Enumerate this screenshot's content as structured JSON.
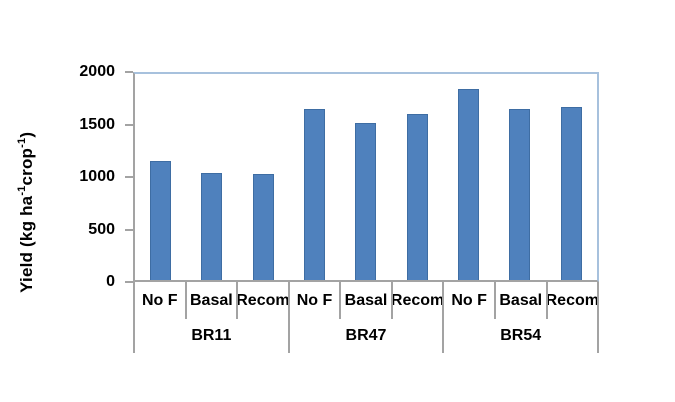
{
  "chart_data": {
    "type": "bar",
    "title": "",
    "ylabel": "Yield (kg ha⁻¹crop⁻¹)",
    "ylabel_parts": [
      "Yield (kg ha",
      "-1",
      "crop",
      "-1",
      ")"
    ],
    "xlabel": "",
    "ylim": [
      0,
      2000
    ],
    "yticks": [
      0,
      500,
      1000,
      1500,
      2000
    ],
    "grid": false,
    "legend": null,
    "bar_color": "#4F81BD",
    "bar_border_color": "#3E6DA3",
    "plot_border_color": "#A7C1DD",
    "axis_color": "#A3A3A3",
    "groups": [
      {
        "label": "BR11",
        "categories": [
          "No F",
          "Basal",
          "Recom"
        ],
        "values": [
          1160,
          1040,
          1030
        ]
      },
      {
        "label": "BR47",
        "categories": [
          "No F",
          "Basal",
          "Recom"
        ],
        "values": [
          1660,
          1520,
          1610
        ]
      },
      {
        "label": "BR54",
        "categories": [
          "No F",
          "Basal",
          "Recom"
        ],
        "values": [
          1850,
          1660,
          1680
        ]
      }
    ]
  }
}
